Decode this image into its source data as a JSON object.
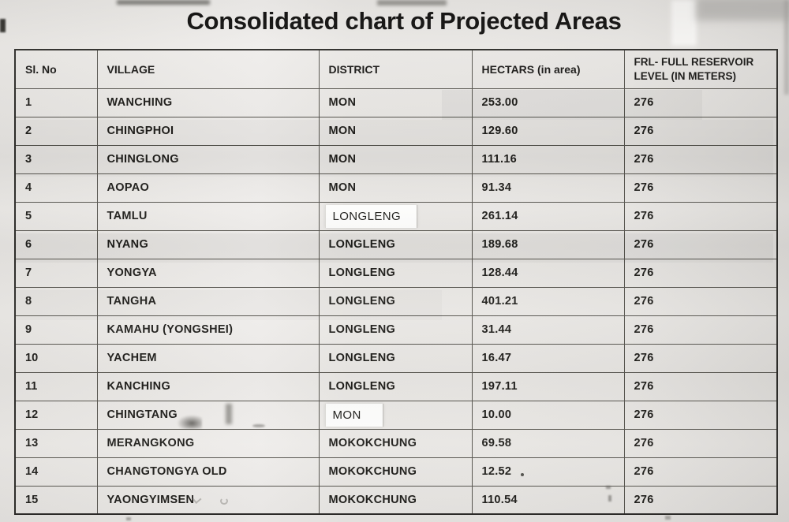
{
  "title": "Consolidated chart of Projected Areas",
  "table": {
    "headers": [
      "Sl. No",
      "VILLAGE",
      "DISTRICT",
      "HECTARS (in area)",
      "FRL- FULL RESERVOIR LEVEL (IN METERS)"
    ],
    "rows": [
      {
        "sl": "1",
        "village": "WANCHING",
        "district": "MON",
        "hectars": "253.00",
        "frl": "276",
        "patched": false
      },
      {
        "sl": "2",
        "village": "CHINGPHOI",
        "district": "MON",
        "hectars": "129.60",
        "frl": "276",
        "patched": false
      },
      {
        "sl": "3",
        "village": "CHINGLONG",
        "district": "MON",
        "hectars": "111.16",
        "frl": "276",
        "patched": false
      },
      {
        "sl": "4",
        "village": "AOPAO",
        "district": "MON",
        "hectars": "91.34",
        "frl": "276",
        "patched": false
      },
      {
        "sl": "5",
        "village": "TAMLU",
        "district": "LONGLENG",
        "hectars": "261.14",
        "frl": "276",
        "patched": true
      },
      {
        "sl": "6",
        "village": "NYANG",
        "district": "LONGLENG",
        "hectars": "189.68",
        "frl": "276",
        "patched": false
      },
      {
        "sl": "7",
        "village": "YONGYA",
        "district": "LONGLENG",
        "hectars": "128.44",
        "frl": "276",
        "patched": false
      },
      {
        "sl": "8",
        "village": "TANGHA",
        "district": "LONGLENG",
        "hectars": "401.21",
        "frl": "276",
        "patched": false
      },
      {
        "sl": "9",
        "village": "KAMAHU (YONGSHEI)",
        "district": "LONGLENG",
        "hectars": "31.44",
        "frl": "276",
        "patched": false
      },
      {
        "sl": "10",
        "village": "YACHEM",
        "district": "LONGLENG",
        "hectars": "16.47",
        "frl": "276",
        "patched": false
      },
      {
        "sl": "11",
        "village": "KANCHING",
        "district": "LONGLENG",
        "hectars": "197.11",
        "frl": "276",
        "patched": false
      },
      {
        "sl": "12",
        "village": "CHINGTANG",
        "district": "MON",
        "hectars": "10.00",
        "frl": "276",
        "patched": true
      },
      {
        "sl": "13",
        "village": "MERANGKONG",
        "district": "MOKOKCHUNG",
        "hectars": "69.58",
        "frl": "276",
        "patched": false
      },
      {
        "sl": "14",
        "village": "CHANGTONGYA OLD",
        "district": "MOKOKCHUNG",
        "hectars": "12.52",
        "frl": "276",
        "patched": false
      },
      {
        "sl": "15",
        "village": "YAONGYIMSEN",
        "district": "MOKOKCHUNG",
        "hectars": "110.54",
        "frl": "276",
        "patched": false
      }
    ]
  },
  "colors": {
    "page_background": "#e8e6e3",
    "text": "#1b1a18",
    "grid_line": "#57554f",
    "patch_background": "#fcfcfb"
  }
}
